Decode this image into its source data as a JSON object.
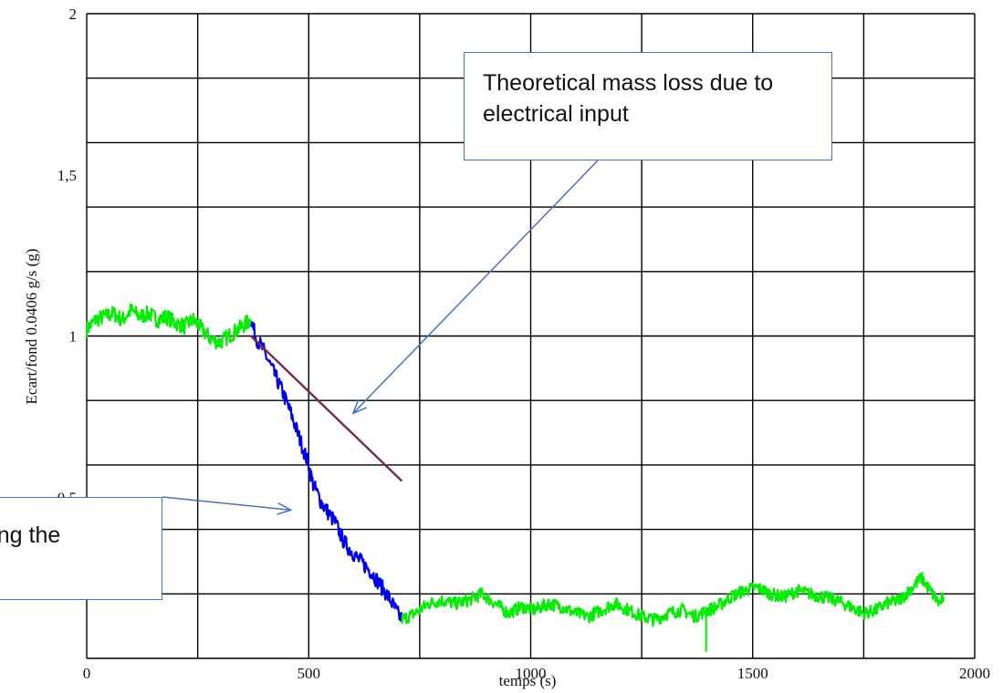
{
  "chart_data": {
    "type": "line",
    "title": "",
    "xlabel": "temps (s)",
    "ylabel": "Ecart/fond 0.0406 g/s (g)",
    "xlim": [
      0,
      2000
    ],
    "ylim": [
      0,
      2
    ],
    "x_ticks": [
      "0",
      "500",
      "1000",
      "1500",
      "2000"
    ],
    "y_ticks": [
      "0,5",
      "1",
      "1,5",
      "2"
    ],
    "grid": true,
    "series": [
      {
        "color": "#00ee00",
        "points": [
          [
            0,
            1.02
          ],
          [
            20,
            1.05
          ],
          [
            40,
            1.06
          ],
          [
            60,
            1.07
          ],
          [
            80,
            1.05
          ],
          [
            100,
            1.08
          ],
          [
            120,
            1.06
          ],
          [
            140,
            1.07
          ],
          [
            160,
            1.05
          ],
          [
            180,
            1.06
          ],
          [
            200,
            1.04
          ],
          [
            220,
            1.03
          ],
          [
            240,
            1.05
          ],
          [
            260,
            1.02
          ],
          [
            280,
            0.99
          ],
          [
            300,
            0.98
          ],
          [
            320,
            1.0
          ],
          [
            340,
            1.02
          ],
          [
            360,
            1.04
          ],
          [
            370,
            1.05
          ]
        ],
        "noise": 0.025
      },
      {
        "color": "#0000ee",
        "points": [
          [
            370,
            1.05
          ],
          [
            380,
            1.0
          ],
          [
            400,
            0.95
          ],
          [
            420,
            0.89
          ],
          [
            440,
            0.83
          ],
          [
            460,
            0.76
          ],
          [
            480,
            0.68
          ],
          [
            500,
            0.6
          ],
          [
            510,
            0.54
          ],
          [
            530,
            0.48
          ],
          [
            560,
            0.42
          ],
          [
            580,
            0.36
          ],
          [
            610,
            0.31
          ],
          [
            640,
            0.27
          ],
          [
            660,
            0.23
          ],
          [
            680,
            0.19
          ],
          [
            700,
            0.14
          ],
          [
            710,
            0.12
          ]
        ],
        "noise": 0.025
      },
      {
        "color": "#00ee00",
        "points": [
          [
            710,
            0.12
          ],
          [
            740,
            0.14
          ],
          [
            770,
            0.17
          ],
          [
            800,
            0.18
          ],
          [
            830,
            0.17
          ],
          [
            860,
            0.18
          ],
          [
            890,
            0.2
          ],
          [
            920,
            0.17
          ],
          [
            950,
            0.14
          ],
          [
            980,
            0.16
          ],
          [
            1010,
            0.15
          ],
          [
            1040,
            0.17
          ],
          [
            1070,
            0.16
          ],
          [
            1100,
            0.14
          ],
          [
            1130,
            0.13
          ],
          [
            1160,
            0.15
          ],
          [
            1190,
            0.17
          ],
          [
            1220,
            0.15
          ],
          [
            1250,
            0.13
          ],
          [
            1280,
            0.12
          ],
          [
            1310,
            0.14
          ],
          [
            1340,
            0.15
          ],
          [
            1370,
            0.13
          ],
          [
            1400,
            0.15
          ],
          [
            1420,
            0.16
          ],
          [
            1450,
            0.19
          ],
          [
            1480,
            0.21
          ],
          [
            1510,
            0.22
          ],
          [
            1540,
            0.2
          ],
          [
            1570,
            0.19
          ],
          [
            1600,
            0.21
          ],
          [
            1630,
            0.2
          ],
          [
            1660,
            0.19
          ],
          [
            1690,
            0.18
          ],
          [
            1720,
            0.16
          ],
          [
            1750,
            0.14
          ],
          [
            1780,
            0.15
          ],
          [
            1800,
            0.17
          ],
          [
            1830,
            0.18
          ],
          [
            1860,
            0.22
          ],
          [
            1880,
            0.25
          ],
          [
            1900,
            0.21
          ],
          [
            1920,
            0.17
          ],
          [
            1930,
            0.19
          ]
        ],
        "noise": 0.02
      },
      {
        "color": "#7a2a4a",
        "points": [
          [
            370,
            1.0
          ],
          [
            710,
            0.55
          ]
        ],
        "noise": 0
      }
    ],
    "spike": {
      "x": 1395,
      "y": 0.02,
      "color": "#00ee00"
    }
  },
  "annotations": [
    {
      "text": "Theoretical mass loss due to electrical input",
      "arrow_to": [
        600,
        0.76
      ]
    },
    {
      "text": "uring the",
      "arrow_to": [
        460,
        0.46
      ]
    }
  ],
  "colors": {
    "grid": "#000000",
    "callout_border": "#4472c4",
    "arrow": "#4472c4"
  }
}
